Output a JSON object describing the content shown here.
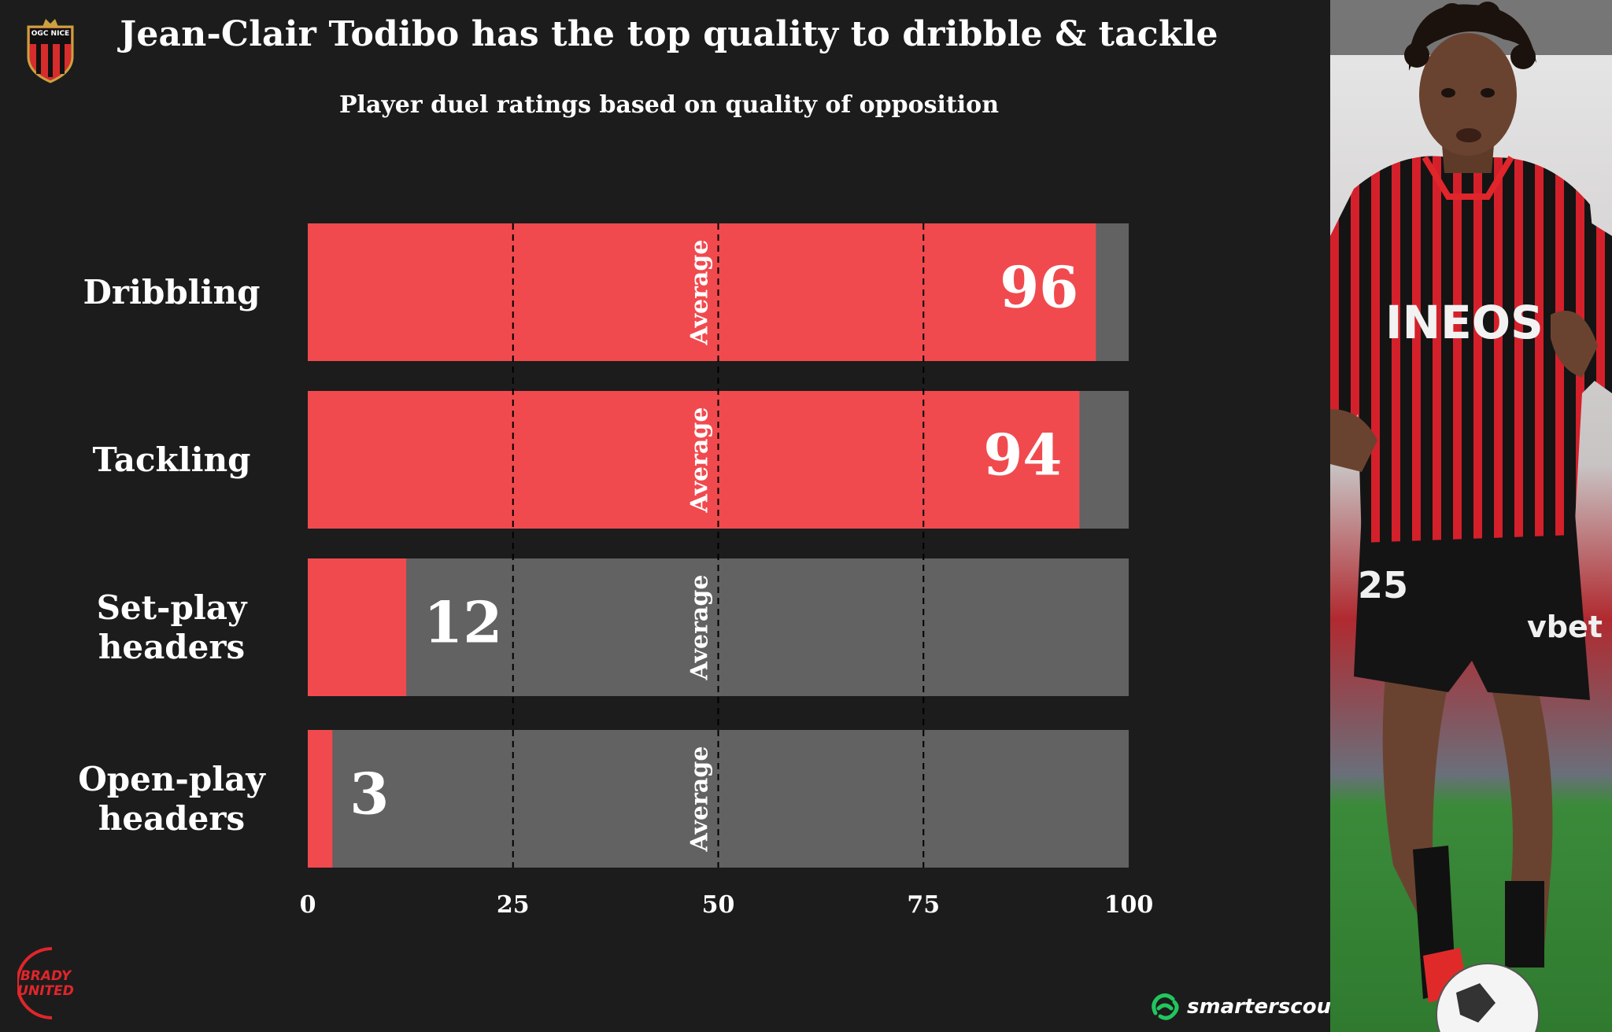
{
  "title": "Jean-Clair Todibo has the top quality to dribble & tackle",
  "subtitle": "Player duel ratings based on quality of opposition",
  "colors": {
    "background": "#1c1c1c",
    "player_bar": "#f04a4e",
    "remainder_bar": "#626262",
    "text": "#ffffff",
    "brand_green": "#22c55e"
  },
  "icons": {
    "club_crest": "ogc-nice-crest-icon",
    "watermark": "brady-united-logo-icon",
    "source": "smarterscout-logo-icon"
  },
  "logos": {
    "club_crest_text": "OGC NICE",
    "watermark_text": "BRADY UNITED"
  },
  "source": {
    "name": "smarterscout"
  },
  "photo": {
    "subject": "player-photo",
    "shirt_sponsor": "INEOS",
    "shorts_number": "25",
    "shorts_sponsor": "vbet"
  },
  "chart_data": {
    "type": "bar",
    "orientation": "horizontal",
    "categories": [
      "Dribbling",
      "Tackling",
      "Set-play headers",
      "Open-play headers"
    ],
    "category_lines": [
      [
        "Dribbling"
      ],
      [
        "Tackling"
      ],
      [
        "Set-play",
        "headers"
      ],
      [
        "Open-play",
        "headers"
      ]
    ],
    "values": [
      96,
      94,
      12,
      3
    ],
    "xlim": [
      0,
      100
    ],
    "xticks": [
      0,
      25,
      50,
      75,
      100
    ],
    "reference_lines": [
      25,
      50,
      75
    ],
    "average_label": "Average",
    "average_value": 50,
    "grid": false
  }
}
